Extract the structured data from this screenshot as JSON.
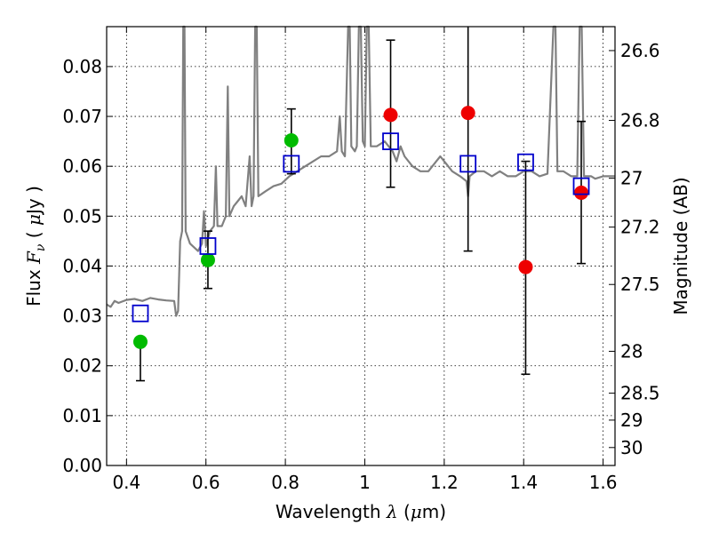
{
  "chart_data": {
    "type": "scatter",
    "xlabel": {
      "prefix": "Wavelength",
      "symbol": "λ",
      "unit_open": "(",
      "unit_mu": "μ",
      "unit_rest": "m)"
    },
    "ylabel": {
      "prefix": "Flux",
      "symbol": "F",
      "subscript": "ν",
      "unit_open": "(",
      "unit_mu": "μ",
      "unit_rest": "Jy )"
    },
    "y2label": "Magnitude (AB)",
    "xlim": [
      0.35,
      1.63
    ],
    "ylim": [
      0.0,
      0.088
    ],
    "grid": true,
    "x_ticks": [
      0.4,
      0.6,
      0.8,
      1.0,
      1.2,
      1.4,
      1.6
    ],
    "x_tick_labels": [
      "0.4",
      "0.6",
      "0.8",
      "1",
      "1.2",
      "1.4",
      "1.6"
    ],
    "y_ticks": [
      0.0,
      0.01,
      0.02,
      0.03,
      0.04,
      0.05,
      0.06,
      0.07,
      0.08
    ],
    "y_tick_labels": [
      "0.00",
      "0.01",
      "0.02",
      "0.03",
      "0.04",
      "0.05",
      "0.06",
      "0.07",
      "0.08"
    ],
    "y2_ticks": [
      {
        "label": "26.6",
        "flux": 0.0832
      },
      {
        "label": "26.8",
        "flux": 0.0692
      },
      {
        "label": "27",
        "flux": 0.0576
      },
      {
        "label": "27.2",
        "flux": 0.0478
      },
      {
        "label": "27.5",
        "flux": 0.0363
      },
      {
        "label": "28",
        "flux": 0.0229
      },
      {
        "label": "28.5",
        "flux": 0.0145
      },
      {
        "label": "29",
        "flux": 0.0091
      },
      {
        "label": "30",
        "flux": 0.0036
      }
    ],
    "colors": {
      "template": "#808080",
      "model": "#0000cc",
      "green": "#00bb00",
      "red": "#ee0000",
      "error": "#000000"
    },
    "series": [
      {
        "kind": "line",
        "points": [
          [
            0.35,
            0.0323
          ],
          [
            0.36,
            0.0318
          ],
          [
            0.37,
            0.033
          ],
          [
            0.38,
            0.0326
          ],
          [
            0.4,
            0.0332
          ],
          [
            0.42,
            0.0334
          ],
          [
            0.44,
            0.033
          ],
          [
            0.46,
            0.0336
          ],
          [
            0.48,
            0.0333
          ],
          [
            0.5,
            0.0331
          ],
          [
            0.52,
            0.033
          ],
          [
            0.525,
            0.03
          ],
          [
            0.53,
            0.031
          ],
          [
            0.535,
            0.045
          ],
          [
            0.54,
            0.047
          ],
          [
            0.543,
            0.088
          ],
          [
            0.546,
            0.088
          ],
          [
            0.549,
            0.047
          ],
          [
            0.56,
            0.0445
          ],
          [
            0.58,
            0.043
          ],
          [
            0.59,
            0.0445
          ],
          [
            0.595,
            0.051
          ],
          [
            0.598,
            0.047
          ],
          [
            0.6,
            0.044
          ],
          [
            0.61,
            0.047
          ],
          [
            0.62,
            0.048
          ],
          [
            0.625,
            0.06
          ],
          [
            0.629,
            0.048
          ],
          [
            0.64,
            0.048
          ],
          [
            0.65,
            0.05
          ],
          [
            0.655,
            0.076
          ],
          [
            0.659,
            0.05
          ],
          [
            0.67,
            0.052
          ],
          [
            0.68,
            0.053
          ],
          [
            0.69,
            0.054
          ],
          [
            0.7,
            0.052
          ],
          [
            0.71,
            0.062
          ],
          [
            0.715,
            0.052
          ],
          [
            0.72,
            0.054
          ],
          [
            0.724,
            0.088
          ],
          [
            0.728,
            0.088
          ],
          [
            0.732,
            0.054
          ],
          [
            0.75,
            0.055
          ],
          [
            0.77,
            0.056
          ],
          [
            0.79,
            0.0565
          ],
          [
            0.81,
            0.058
          ],
          [
            0.83,
            0.059
          ],
          [
            0.85,
            0.06
          ],
          [
            0.87,
            0.061
          ],
          [
            0.89,
            0.062
          ],
          [
            0.91,
            0.062
          ],
          [
            0.93,
            0.063
          ],
          [
            0.937,
            0.07
          ],
          [
            0.942,
            0.063
          ],
          [
            0.95,
            0.062
          ],
          [
            0.958,
            0.088
          ],
          [
            0.962,
            0.088
          ],
          [
            0.966,
            0.064
          ],
          [
            0.975,
            0.063
          ],
          [
            0.98,
            0.064
          ],
          [
            0.985,
            0.088
          ],
          [
            0.99,
            0.088
          ],
          [
            0.995,
            0.065
          ],
          [
            1.0,
            0.064
          ],
          [
            1.005,
            0.088
          ],
          [
            1.01,
            0.088
          ],
          [
            1.015,
            0.064
          ],
          [
            1.03,
            0.064
          ],
          [
            1.05,
            0.065
          ],
          [
            1.07,
            0.063
          ],
          [
            1.08,
            0.061
          ],
          [
            1.09,
            0.064
          ],
          [
            1.1,
            0.062
          ],
          [
            1.12,
            0.06
          ],
          [
            1.14,
            0.059
          ],
          [
            1.16,
            0.059
          ],
          [
            1.18,
            0.061
          ],
          [
            1.19,
            0.062
          ],
          [
            1.2,
            0.061
          ],
          [
            1.22,
            0.059
          ],
          [
            1.24,
            0.058
          ],
          [
            1.256,
            0.057
          ],
          [
            1.26,
            0.054
          ],
          [
            1.264,
            0.058
          ],
          [
            1.28,
            0.059
          ],
          [
            1.3,
            0.059
          ],
          [
            1.32,
            0.058
          ],
          [
            1.34,
            0.059
          ],
          [
            1.36,
            0.058
          ],
          [
            1.38,
            0.058
          ],
          [
            1.4,
            0.059
          ],
          [
            1.42,
            0.059
          ],
          [
            1.44,
            0.058
          ],
          [
            1.46,
            0.0585
          ],
          [
            1.475,
            0.088
          ],
          [
            1.48,
            0.088
          ],
          [
            1.485,
            0.059
          ],
          [
            1.5,
            0.059
          ],
          [
            1.52,
            0.058
          ],
          [
            1.535,
            0.058
          ],
          [
            1.541,
            0.088
          ],
          [
            1.546,
            0.088
          ],
          [
            1.552,
            0.058
          ],
          [
            1.57,
            0.058
          ],
          [
            1.58,
            0.0575
          ],
          [
            1.6,
            0.058
          ],
          [
            1.63,
            0.058
          ]
        ]
      },
      {
        "kind": "model_squares",
        "points": [
          [
            0.435,
            0.0305
          ],
          [
            0.605,
            0.044
          ],
          [
            0.815,
            0.0605
          ],
          [
            1.065,
            0.065
          ],
          [
            1.26,
            0.0605
          ],
          [
            1.405,
            0.0608
          ],
          [
            1.545,
            0.056
          ]
        ]
      },
      {
        "kind": "green_points",
        "points": [
          [
            0.435,
            0.0248,
            0.017,
            0.0248
          ],
          [
            0.605,
            0.0412,
            0.0355,
            0.047
          ],
          [
            0.815,
            0.0652,
            0.0585,
            0.0715
          ]
        ]
      },
      {
        "kind": "red_points",
        "points": [
          [
            1.065,
            0.0703,
            0.0558,
            0.0853
          ],
          [
            1.26,
            0.0707,
            0.043,
            0.088
          ],
          [
            1.405,
            0.0398,
            0.0183,
            0.061
          ],
          [
            1.545,
            0.0547,
            0.0405,
            0.069
          ]
        ]
      }
    ]
  }
}
